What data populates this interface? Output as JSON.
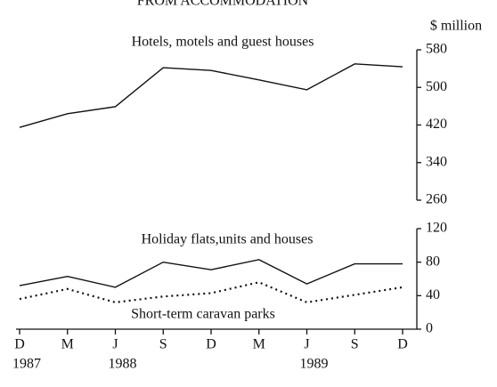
{
  "chart_data": [
    {
      "type": "line",
      "title": "FROM ACCOMMODATION",
      "y_label": "$ million",
      "ylim": [
        260,
        580
      ],
      "yticks": [
        260,
        340,
        420,
        500,
        580
      ],
      "series": [
        {
          "name": "Hotels, motels and guest houses",
          "color": "#111111",
          "dash": "solid",
          "values": [
            415,
            444,
            459,
            542,
            536,
            516,
            495,
            550,
            544
          ]
        }
      ]
    },
    {
      "type": "line",
      "categories": [
        "D",
        "M",
        "J",
        "S",
        "D",
        "M",
        "J",
        "S",
        "D"
      ],
      "x_years": [
        "1987",
        null,
        "1988",
        null,
        null,
        null,
        "1989",
        null,
        null
      ],
      "ylim": [
        0,
        120
      ],
      "yticks": [
        0,
        40,
        80,
        120
      ],
      "series": [
        {
          "name": "Holiday flats,units and houses",
          "color": "#111111",
          "dash": "solid",
          "values": [
            52,
            63,
            50,
            80,
            71,
            83,
            54,
            78,
            78
          ]
        },
        {
          "name": "Short-term caravan parks",
          "color": "#111111",
          "dash": "dotted",
          "values": [
            36,
            48,
            32,
            39,
            43,
            56,
            32,
            41,
            50
          ]
        }
      ]
    }
  ]
}
